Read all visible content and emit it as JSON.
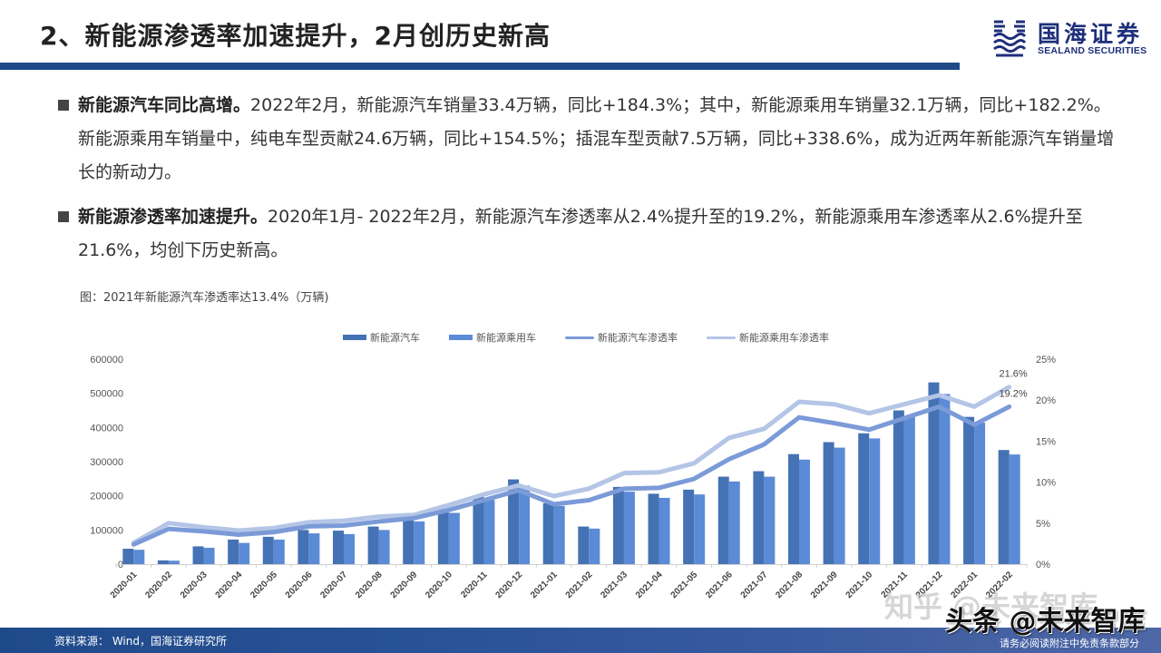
{
  "header": {
    "title": "2、新能源渗透率加速提升，2月创历史新高",
    "logo": {
      "cn": "国海证券",
      "en": "SEALAND SECURITIES",
      "icon": "sealand-wave-icon"
    },
    "rule_color": "#1f4a8a"
  },
  "bullets": [
    {
      "lead": "新能源汽车同比高增。",
      "text": "2022年2月，新能源汽车销量33.4万辆，同比+184.3%；其中，新能源乘用车销量32.1万辆，同比+182.2%。新能源乘用车销量中，纯电车型贡献24.6万辆，同比+154.5%；插混车型贡献7.5万辆，同比+338.6%，成为近两年新能源汽车销量增长的新动力。"
    },
    {
      "lead": "新能源渗透率加速提升。",
      "text": "2020年1月- 2022年2月，新能源汽车渗透率从2.4%提升至的19.2%，新能源乘用车渗透率从2.6%提升至21.6%，均创下历史新高。"
    }
  ],
  "figure": {
    "caption": "图：2021年新能源汽车渗透率达13.4%（万辆)"
  },
  "chart_data": {
    "type": "bar",
    "title": "图：2021年新能源汽车渗透率达13.4%（万辆)",
    "xlabel": "",
    "ylabel": "",
    "y2label": "",
    "ylim": [
      0,
      600000
    ],
    "y2lim": [
      0,
      25
    ],
    "yticks": [
      "0",
      "100000",
      "200000",
      "300000",
      "400000",
      "500000",
      "600000"
    ],
    "y2ticks": [
      "0%",
      "5%",
      "10%",
      "15%",
      "20%",
      "25%"
    ],
    "grid": false,
    "legend_position": "top",
    "categories": [
      "2020-01",
      "2020-02",
      "2020-03",
      "2020-04",
      "2020-05",
      "2020-06",
      "2020-07",
      "2020-08",
      "2020-09",
      "2020-10",
      "2020-11",
      "2020-12",
      "2021-01",
      "2021-02",
      "2021-03",
      "2021-04",
      "2021-05",
      "2021-06",
      "2021-07",
      "2021-08",
      "2021-09",
      "2021-10",
      "2021-11",
      "2021-12",
      "2022-01",
      "2022-02"
    ],
    "series": [
      {
        "name": "新能源汽车",
        "type": "bar",
        "axis": "left",
        "color": "#4472b4",
        "values": [
          45000,
          11000,
          52000,
          72000,
          80000,
          100000,
          98000,
          110000,
          138000,
          162000,
          200000,
          248000,
          178000,
          110000,
          226000,
          206000,
          218000,
          256000,
          272000,
          322000,
          357000,
          383000,
          450000,
          532000,
          431000,
          334000
        ]
      },
      {
        "name": "新能源乘用车",
        "type": "bar",
        "axis": "left",
        "color": "#5b8bd6",
        "values": [
          42000,
          10000,
          48000,
          62000,
          72000,
          90000,
          88000,
          100000,
          125000,
          150000,
          188000,
          230000,
          170000,
          104000,
          212000,
          194000,
          204000,
          242000,
          256000,
          306000,
          341000,
          368000,
          430000,
          498000,
          414000,
          321000
        ]
      },
      {
        "name": "新能源汽车渗透率",
        "type": "line",
        "axis": "right",
        "color": "#7b9ad8",
        "values": [
          2.4,
          4.3,
          4.0,
          3.6,
          3.9,
          4.6,
          4.7,
          5.2,
          5.6,
          6.6,
          7.8,
          9.0,
          7.3,
          7.8,
          9.2,
          9.3,
          10.4,
          12.8,
          14.6,
          17.9,
          17.2,
          16.4,
          17.8,
          19.2,
          17.0,
          19.2
        ]
      },
      {
        "name": "新能源乘用车渗透率",
        "type": "line",
        "axis": "right",
        "color": "#b4c5e6",
        "values": [
          2.6,
          5.0,
          4.5,
          4.1,
          4.4,
          5.1,
          5.3,
          5.8,
          6.0,
          7.2,
          8.5,
          9.6,
          8.3,
          9.2,
          11.1,
          11.2,
          12.3,
          15.4,
          16.5,
          19.8,
          19.5,
          18.4,
          19.5,
          20.6,
          19.2,
          21.6
        ]
      }
    ],
    "annotations": [
      {
        "series": "新能源乘用车渗透率",
        "category": "2022-02",
        "label": "21.6%"
      },
      {
        "series": "新能源汽车渗透率",
        "category": "2022-02",
        "label": "19.2%"
      }
    ]
  },
  "footer": {
    "source": "资料来源： Wind，国海证券研究所",
    "disclaimer": "请务必阅读附注中免责条款部分",
    "bg_color": "#1f4a8a"
  },
  "watermarks": {
    "zhihu": "知乎 @未来智库",
    "toutiao": "头条 @未来智库"
  }
}
